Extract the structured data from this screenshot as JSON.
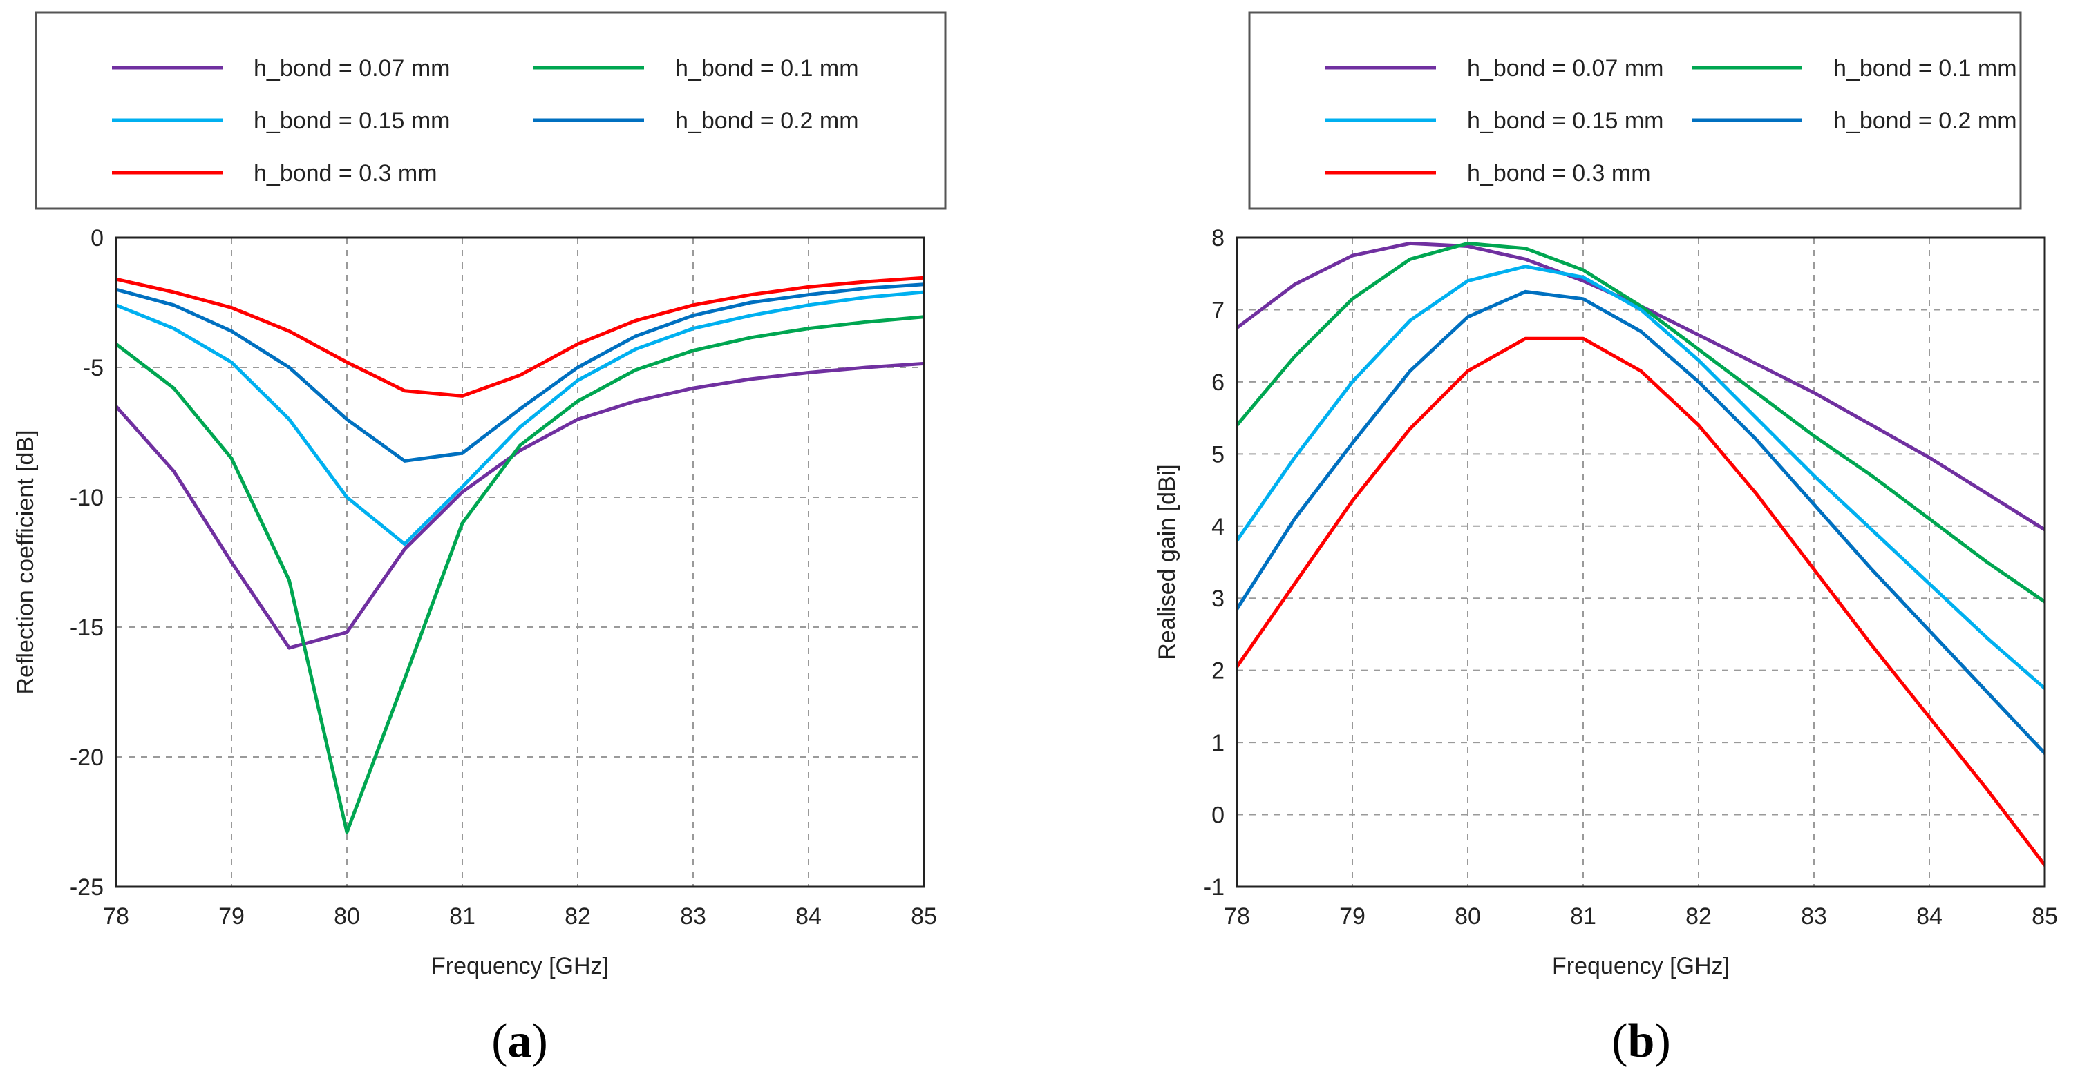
{
  "chart_data": [
    {
      "type": "line",
      "panel_label": "(a)",
      "panel_letter": "a",
      "title": "",
      "xlabel": "Frequency [GHz]",
      "ylabel": "Reflection coefficient [dB]",
      "xlim": [
        78,
        85
      ],
      "ylim": [
        -25,
        0
      ],
      "xticks": [
        78,
        79,
        80,
        81,
        82,
        83,
        84,
        85
      ],
      "yticks": [
        0,
        -5,
        -10,
        -15,
        -20,
        -25
      ],
      "grid": true,
      "legend_position": "top",
      "x": [
        78,
        78.5,
        79,
        79.5,
        80,
        80.5,
        81,
        81.5,
        82,
        82.5,
        83,
        83.5,
        84,
        84.5,
        85
      ],
      "series": [
        {
          "name": "h_bond = 0.07 mm",
          "color": "#7030a0",
          "values": [
            -6.5,
            -9.0,
            -12.5,
            -15.8,
            -15.2,
            -12.0,
            -9.8,
            -8.2,
            -7.0,
            -6.3,
            -5.8,
            -5.45,
            -5.2,
            -5.0,
            -4.85
          ]
        },
        {
          "name": "h_bond = 0.1 mm",
          "color": "#00a651",
          "values": [
            -4.1,
            -5.8,
            -8.5,
            -13.2,
            -22.9,
            -17.0,
            -11.0,
            -8.0,
            -6.3,
            -5.1,
            -4.35,
            -3.85,
            -3.5,
            -3.25,
            -3.05
          ]
        },
        {
          "name": "h_bond = 0.15 mm",
          "color": "#00b0f0",
          "values": [
            -2.6,
            -3.5,
            -4.8,
            -7.0,
            -10.0,
            -11.8,
            -9.6,
            -7.3,
            -5.5,
            -4.3,
            -3.5,
            -3.0,
            -2.6,
            -2.3,
            -2.1
          ]
        },
        {
          "name": "h_bond = 0.2 mm",
          "color": "#0070c0",
          "values": [
            -2.0,
            -2.6,
            -3.6,
            -5.0,
            -7.0,
            -8.6,
            -8.3,
            -6.6,
            -5.0,
            -3.8,
            -3.0,
            -2.5,
            -2.2,
            -1.95,
            -1.8
          ]
        },
        {
          "name": "h_bond = 0.3 mm",
          "color": "#ff0000",
          "values": [
            -1.6,
            -2.1,
            -2.7,
            -3.6,
            -4.8,
            -5.9,
            -6.1,
            -5.3,
            -4.1,
            -3.2,
            -2.6,
            -2.2,
            -1.9,
            -1.7,
            -1.55
          ]
        }
      ]
    },
    {
      "type": "line",
      "panel_label": "(b)",
      "panel_letter": "b",
      "title": "",
      "xlabel": "Frequency [GHz]",
      "ylabel": "Realised gain [dBi]",
      "xlim": [
        78,
        85
      ],
      "ylim": [
        -1,
        8
      ],
      "xticks": [
        78,
        79,
        80,
        81,
        82,
        83,
        84,
        85
      ],
      "yticks": [
        8,
        7,
        6,
        5,
        4,
        3,
        2,
        1,
        0,
        -1
      ],
      "grid": true,
      "legend_position": "top",
      "x": [
        78,
        78.5,
        79,
        79.5,
        80,
        80.5,
        81,
        81.5,
        82,
        82.5,
        83,
        83.5,
        84,
        84.5,
        85
      ],
      "series": [
        {
          "name": "h_bond = 0.07 mm",
          "color": "#7030a0",
          "values": [
            6.75,
            7.35,
            7.75,
            7.92,
            7.88,
            7.7,
            7.4,
            7.05,
            6.65,
            6.25,
            5.85,
            5.4,
            4.95,
            4.45,
            3.95
          ]
        },
        {
          "name": "h_bond = 0.1 mm",
          "color": "#00a651",
          "values": [
            5.4,
            6.35,
            7.15,
            7.7,
            7.92,
            7.85,
            7.55,
            7.05,
            6.45,
            5.85,
            5.25,
            4.7,
            4.1,
            3.5,
            2.95
          ]
        },
        {
          "name": "h_bond = 0.15 mm",
          "color": "#00b0f0",
          "values": [
            3.8,
            4.95,
            6.0,
            6.85,
            7.4,
            7.6,
            7.45,
            7.0,
            6.3,
            5.5,
            4.7,
            3.95,
            3.2,
            2.45,
            1.75
          ]
        },
        {
          "name": "h_bond = 0.2 mm",
          "color": "#0070c0",
          "values": [
            2.85,
            4.1,
            5.15,
            6.15,
            6.9,
            7.25,
            7.15,
            6.7,
            6.0,
            5.2,
            4.3,
            3.4,
            2.55,
            1.7,
            0.85
          ]
        },
        {
          "name": "h_bond = 0.3 mm",
          "color": "#ff0000",
          "values": [
            2.05,
            3.2,
            4.35,
            5.35,
            6.15,
            6.6,
            6.6,
            6.15,
            5.4,
            4.45,
            3.4,
            2.35,
            1.35,
            0.35,
            -0.7
          ]
        }
      ]
    }
  ]
}
